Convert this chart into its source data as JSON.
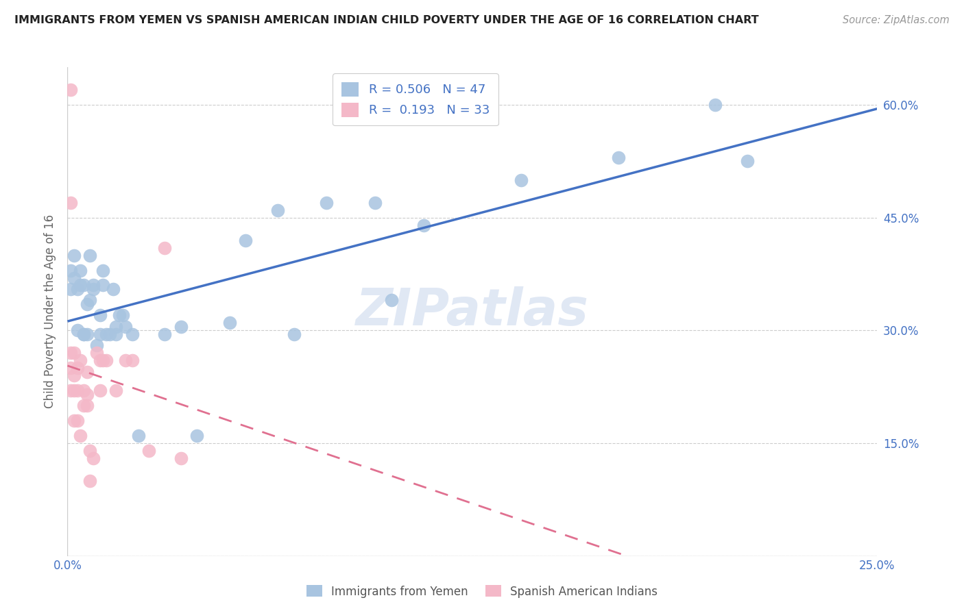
{
  "title": "IMMIGRANTS FROM YEMEN VS SPANISH AMERICAN INDIAN CHILD POVERTY UNDER THE AGE OF 16 CORRELATION CHART",
  "source": "Source: ZipAtlas.com",
  "ylabel": "Child Poverty Under the Age of 16",
  "xlim": [
    0.0,
    0.25
  ],
  "ylim": [
    0.0,
    0.65
  ],
  "yticks": [
    0.0,
    0.15,
    0.3,
    0.45,
    0.6
  ],
  "ytick_labels": [
    "",
    "15.0%",
    "30.0%",
    "45.0%",
    "60.0%"
  ],
  "xticks": [
    0.0,
    0.05,
    0.1,
    0.15,
    0.2,
    0.25
  ],
  "xtick_labels": [
    "0.0%",
    "",
    "",
    "",
    "",
    "25.0%"
  ],
  "blue_R": 0.506,
  "blue_N": 47,
  "pink_R": 0.193,
  "pink_N": 33,
  "blue_color": "#a8c4e0",
  "pink_color": "#f4b8c8",
  "blue_line_color": "#4472c4",
  "pink_line_color": "#e07090",
  "legend_label_blue": "Immigrants from Yemen",
  "legend_label_pink": "Spanish American Indians",
  "watermark": "ZIPatlas",
  "blue_points_x": [
    0.001,
    0.001,
    0.002,
    0.002,
    0.003,
    0.003,
    0.004,
    0.004,
    0.005,
    0.005,
    0.005,
    0.006,
    0.006,
    0.007,
    0.007,
    0.008,
    0.008,
    0.009,
    0.01,
    0.01,
    0.011,
    0.011,
    0.012,
    0.013,
    0.014,
    0.015,
    0.015,
    0.016,
    0.017,
    0.018,
    0.02,
    0.022,
    0.03,
    0.035,
    0.04,
    0.05,
    0.055,
    0.065,
    0.07,
    0.08,
    0.095,
    0.1,
    0.11,
    0.14,
    0.17,
    0.2,
    0.21
  ],
  "blue_points_y": [
    0.355,
    0.38,
    0.37,
    0.4,
    0.355,
    0.3,
    0.36,
    0.38,
    0.295,
    0.36,
    0.295,
    0.335,
    0.295,
    0.4,
    0.34,
    0.36,
    0.355,
    0.28,
    0.32,
    0.295,
    0.36,
    0.38,
    0.295,
    0.295,
    0.355,
    0.305,
    0.295,
    0.32,
    0.32,
    0.305,
    0.295,
    0.16,
    0.295,
    0.305,
    0.16,
    0.31,
    0.42,
    0.46,
    0.295,
    0.47,
    0.47,
    0.34,
    0.44,
    0.5,
    0.53,
    0.6,
    0.525
  ],
  "pink_points_x": [
    0.001,
    0.001,
    0.001,
    0.001,
    0.001,
    0.002,
    0.002,
    0.002,
    0.002,
    0.003,
    0.003,
    0.003,
    0.004,
    0.004,
    0.005,
    0.005,
    0.006,
    0.006,
    0.006,
    0.007,
    0.007,
    0.008,
    0.009,
    0.01,
    0.01,
    0.011,
    0.012,
    0.015,
    0.018,
    0.02,
    0.025,
    0.03,
    0.035
  ],
  "pink_points_y": [
    0.62,
    0.47,
    0.27,
    0.25,
    0.22,
    0.27,
    0.24,
    0.22,
    0.18,
    0.25,
    0.22,
    0.18,
    0.26,
    0.16,
    0.22,
    0.2,
    0.245,
    0.215,
    0.2,
    0.14,
    0.1,
    0.13,
    0.27,
    0.26,
    0.22,
    0.26,
    0.26,
    0.22,
    0.26,
    0.26,
    0.14,
    0.41,
    0.13
  ]
}
